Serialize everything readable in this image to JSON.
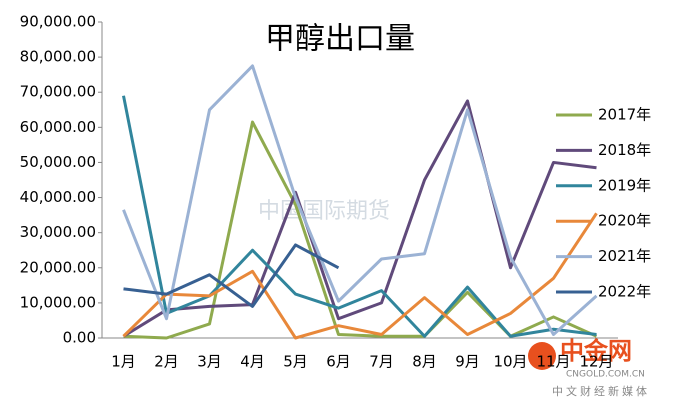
{
  "chart_data": {
    "type": "line",
    "title": "甲醇出口量",
    "categories": [
      "1月",
      "2月",
      "3月",
      "4月",
      "5月",
      "6月",
      "7月",
      "8月",
      "9月",
      "10月",
      "11月",
      "12月"
    ],
    "series": [
      {
        "name": "2017年",
        "color": "#8faa4e",
        "values": [
          500,
          0,
          4000,
          61500,
          38000,
          1000,
          500,
          500,
          13000,
          500,
          6000,
          500
        ]
      },
      {
        "name": "2018年",
        "color": "#604a7b",
        "values": [
          500,
          8000,
          9000,
          9500,
          41500,
          5500,
          10000,
          45000,
          67500,
          20000,
          50000,
          48500
        ]
      },
      {
        "name": "2019年",
        "color": "#31859c",
        "values": [
          69000,
          7000,
          12000,
          25000,
          12500,
          8500,
          13500,
          500,
          14500,
          500,
          2500,
          1000
        ]
      },
      {
        "name": "2020年",
        "color": "#e8883a",
        "values": [
          500,
          12500,
          12000,
          19000,
          0,
          3500,
          1000,
          11500,
          1000,
          7000,
          17000,
          35500
        ]
      },
      {
        "name": "2021年",
        "color": "#9bb2d4",
        "values": [
          36500,
          5500,
          65000,
          77500,
          40000,
          10500,
          22500,
          24000,
          65000,
          23000,
          1000,
          12000
        ]
      },
      {
        "name": "2022年",
        "color": "#376092",
        "values": [
          14000,
          12500,
          18000,
          9000,
          26500,
          20000,
          null,
          null,
          null,
          null,
          null,
          null
        ]
      }
    ],
    "ylim": [
      0,
      90000
    ],
    "yticks": [
      {
        "value": 0,
        "label": "0.00"
      },
      {
        "value": 10000,
        "label": "10,000.00"
      },
      {
        "value": 20000,
        "label": "20,000.00"
      },
      {
        "value": 30000,
        "label": "30,000.00"
      },
      {
        "value": 40000,
        "label": "40,000.00"
      },
      {
        "value": 50000,
        "label": "50,000.00"
      },
      {
        "value": 60000,
        "label": "60,000.00"
      },
      {
        "value": 70000,
        "label": "70,000.00"
      },
      {
        "value": 80000,
        "label": "80,000.00"
      },
      {
        "value": 90000,
        "label": "90,000.00"
      }
    ],
    "grid": false,
    "legend": "right",
    "watermark": "中国国际期货",
    "logo": {
      "name": "中金网",
      "domain": "CNGOLD.COM.CN",
      "slogan": "中文财经新媒体"
    }
  }
}
